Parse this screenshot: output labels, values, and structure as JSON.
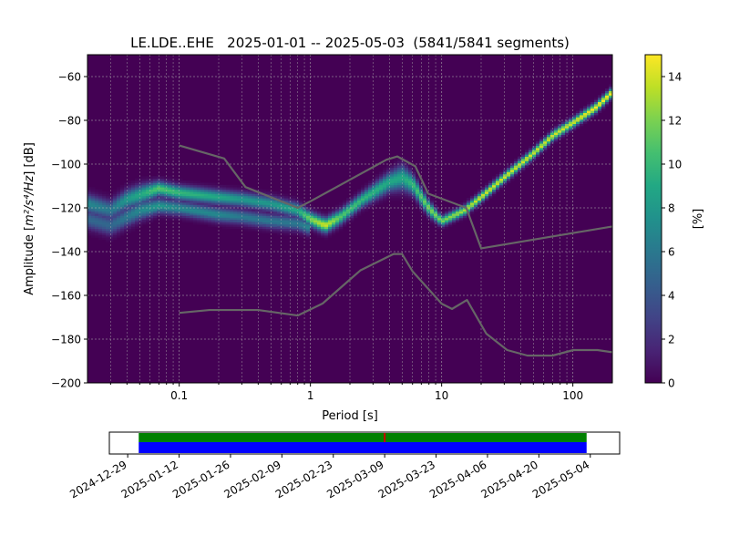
{
  "chart_data": [
    {
      "type": "heatmap",
      "title": "LE.LDE..EHE   2025-01-01 -- 2025-05-03  (5841/5841 segments)",
      "xlabel": "Period [s]",
      "ylabel_prefix": "Amplitude [",
      "ylabel_unit": "m²/s⁴/Hz",
      "ylabel_suffix": "] [dB]",
      "xscale": "log",
      "xlim": [
        0.02,
        200
      ],
      "ylim": [
        -200,
        -50
      ],
      "xticks": [
        0.1,
        1,
        10,
        100
      ],
      "xtick_labels": [
        "0.1",
        "1",
        "10",
        "100"
      ],
      "yticks": [
        -200,
        -180,
        -160,
        -140,
        -120,
        -100,
        -80,
        -60
      ],
      "ytick_labels": [
        "−200",
        "−180",
        "−160",
        "−140",
        "−120",
        "−100",
        "−80",
        "−60"
      ],
      "grid": true,
      "colormap": "viridis",
      "colorbar": {
        "label": "[%]",
        "range": [
          0,
          15
        ],
        "ticks": [
          0,
          2,
          4,
          6,
          8,
          10,
          12,
          14
        ],
        "tick_labels": [
          "0",
          "2",
          "4",
          "6",
          "8",
          "10",
          "12",
          "14"
        ]
      },
      "density_ridges": [
        {
          "name": "upper-mode",
          "points": [
            [
              0.02,
              -118
            ],
            [
              0.03,
              -121
            ],
            [
              0.04,
              -116
            ],
            [
              0.05,
              -114
            ],
            [
              0.07,
              -111
            ],
            [
              0.1,
              -113
            ],
            [
              0.2,
              -115
            ],
            [
              0.3,
              -116
            ],
            [
              0.5,
              -118
            ],
            [
              0.8,
              -121
            ],
            [
              1.0,
              -125
            ],
            [
              1.3,
              -128
            ],
            [
              1.7,
              -124
            ],
            [
              2.5,
              -116
            ],
            [
              4.0,
              -108
            ],
            [
              5.0,
              -106
            ],
            [
              6.0,
              -109
            ],
            [
              8.0,
              -120
            ],
            [
              10,
              -126
            ],
            [
              15,
              -121
            ],
            [
              20,
              -115
            ],
            [
              30,
              -106
            ],
            [
              50,
              -95
            ],
            [
              70,
              -87
            ],
            [
              100,
              -81
            ],
            [
              150,
              -74
            ],
            [
              200,
              -67
            ]
          ],
          "width_db": [
            4,
            4,
            4,
            4,
            3,
            3,
            3,
            3,
            3,
            3,
            3,
            3,
            3,
            3,
            4,
            5,
            4,
            3,
            2,
            2,
            2,
            2,
            2,
            2,
            2,
            2,
            2
          ],
          "peak_percent": [
            7,
            6,
            8,
            9,
            11,
            10,
            9,
            8,
            8,
            9,
            12,
            14,
            11,
            10,
            9,
            9,
            10,
            12,
            12,
            13,
            14,
            14,
            14,
            14,
            14,
            15,
            15
          ]
        },
        {
          "name": "lower-mode",
          "points": [
            [
              0.02,
              -125
            ],
            [
              0.03,
              -128
            ],
            [
              0.04,
              -124
            ],
            [
              0.05,
              -121
            ],
            [
              0.07,
              -119
            ],
            [
              0.1,
              -120
            ],
            [
              0.2,
              -123
            ],
            [
              0.3,
              -124
            ],
            [
              0.5,
              -126
            ],
            [
              0.8,
              -127
            ],
            [
              1.0,
              -129
            ]
          ],
          "width_db": [
            4,
            4,
            4,
            4,
            3,
            3,
            3,
            3,
            3,
            3,
            3
          ],
          "peak_percent": [
            5,
            5,
            6,
            7,
            8,
            7,
            7,
            6,
            6,
            6,
            7
          ]
        }
      ],
      "noise_models": [
        {
          "name": "NHNM",
          "points": [
            [
              0.1,
              -91.5
            ],
            [
              0.22,
              -97.4
            ],
            [
              0.32,
              -110.5
            ],
            [
              0.8,
              -120
            ],
            [
              1.0,
              -117
            ],
            [
              3.8,
              -98
            ],
            [
              4.6,
              -96.5
            ],
            [
              6.3,
              -101
            ],
            [
              7.9,
              -113.5
            ],
            [
              15.4,
              -120
            ],
            [
              20,
              -138.5
            ],
            [
              200,
              -128.5
            ]
          ]
        },
        {
          "name": "NLNM",
          "points": [
            [
              0.1,
              -168
            ],
            [
              0.17,
              -166.7
            ],
            [
              0.4,
              -166.7
            ],
            [
              0.8,
              -169.2
            ],
            [
              1.24,
              -163.7
            ],
            [
              2.4,
              -148.6
            ],
            [
              4.3,
              -141.1
            ],
            [
              5.0,
              -141.1
            ],
            [
              6.0,
              -149
            ],
            [
              10,
              -163.8
            ],
            [
              12,
              -166.2
            ],
            [
              15.6,
              -162.1
            ],
            [
              21.9,
              -177.5
            ],
            [
              31.6,
              -185
            ],
            [
              45,
              -187.5
            ],
            [
              70,
              -187.5
            ],
            [
              101,
              -185
            ],
            [
              154,
              -185
            ],
            [
              200,
              -186
            ]
          ]
        }
      ],
      "noise_model_color": "#666666"
    },
    {
      "type": "timeline",
      "xlim_dates": [
        "2024-12-24",
        "2025-05-12"
      ],
      "coverage_range": [
        "2025-01-01",
        "2025-05-03"
      ],
      "tick_labels": [
        "2024-12-29",
        "2025-01-12",
        "2025-01-26",
        "2025-02-09",
        "2025-02-23",
        "2025-03-09",
        "2025-03-23",
        "2025-04-06",
        "2025-04-20",
        "2025-05-04"
      ],
      "tick_dates": [
        "2024-12-29",
        "2025-01-12",
        "2025-01-26",
        "2025-02-09",
        "2025-02-23",
        "2025-03-09",
        "2025-03-23",
        "2025-04-06",
        "2025-04-20",
        "2025-05-04"
      ],
      "gap_marker_date": "2025-03-09",
      "colors": {
        "data": "#0000ff",
        "processed": "#008000",
        "gap": "#cc0000"
      }
    }
  ]
}
